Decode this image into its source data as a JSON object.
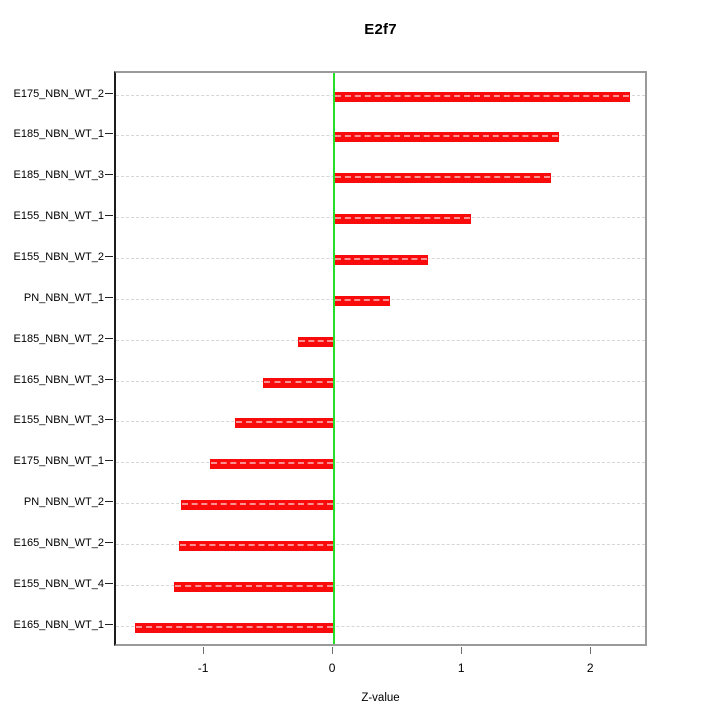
{
  "title": "E2f7",
  "axis": {
    "x_label": "Z-value",
    "x_tick_labels": [
      "-1",
      "0",
      "1",
      "2"
    ]
  },
  "colors": {
    "bar": "#f90b0b",
    "zero_line": "#27df27",
    "gridline": "#d6d6d6",
    "box_border": "#9a9a9a",
    "left_axis": "#1c1c1c"
  },
  "chart_data": {
    "type": "bar",
    "orientation": "horizontal",
    "title": "E2f7",
    "xlabel": "Z-value",
    "ylabel": "",
    "categories": [
      "E175_NBN_WT_2",
      "E185_NBN_WT_1",
      "E185_NBN_WT_3",
      "E155_NBN_WT_1",
      "E155_NBN_WT_2",
      "PN_NBN_WT_1",
      "E185_NBN_WT_2",
      "E165_NBN_WT_3",
      "E155_NBN_WT_3",
      "E175_NBN_WT_1",
      "PN_NBN_WT_2",
      "E165_NBN_WT_2",
      "E155_NBN_WT_4",
      "E165_NBN_WT_1"
    ],
    "values": [
      2.29,
      1.74,
      1.68,
      1.06,
      0.73,
      0.43,
      -0.28,
      -0.55,
      -0.77,
      -0.96,
      -1.19,
      -1.2,
      -1.24,
      -1.54
    ],
    "xlim": [
      -1.69,
      2.44
    ],
    "x_ticks": [
      -1,
      0,
      1,
      2
    ],
    "grid": "horizontal dashed, one per category",
    "zero_line": true,
    "legend": "none"
  }
}
